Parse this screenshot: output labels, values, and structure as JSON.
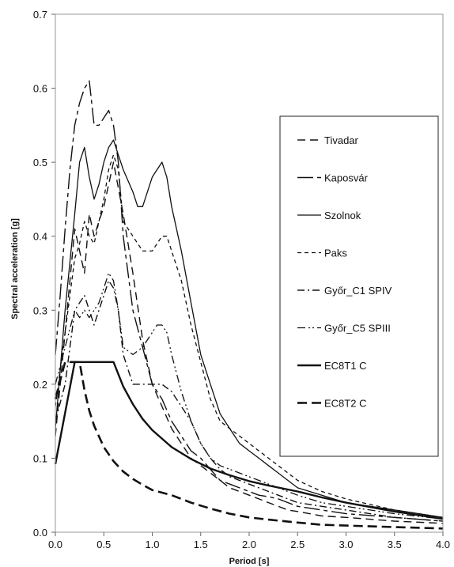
{
  "chart_data": {
    "type": "line",
    "title": "",
    "xlabel": "Period [s]",
    "ylabel": "Spectral acceleration [g]",
    "xlim": [
      0,
      4
    ],
    "ylim": [
      0,
      0.7
    ],
    "x_ticks": [
      "0.0",
      "0.5",
      "1.0",
      "1.5",
      "2.0",
      "2.5",
      "3.0",
      "3.5",
      "4.0"
    ],
    "y_ticks": [
      "0.0",
      "0.1",
      "0.2",
      "0.3",
      "0.4",
      "0.5",
      "0.6",
      "0.7"
    ],
    "grid": false,
    "legend_position": "right",
    "series": [
      {
        "name": "Tivadar",
        "color": "#111111",
        "x": [
          0,
          0.1,
          0.2,
          0.3,
          0.35,
          0.4,
          0.5,
          0.6,
          0.7,
          0.8,
          0.9,
          1.0,
          1.1,
          1.2,
          1.3,
          1.4,
          1.5,
          1.6,
          1.7,
          1.8,
          1.9,
          2.0,
          2.1,
          2.2,
          2.3,
          2.4,
          2.5,
          2.75,
          3.0,
          3.5,
          4.0
        ],
        "y": [
          0.13,
          0.27,
          0.41,
          0.35,
          0.43,
          0.4,
          0.44,
          0.5,
          0.43,
          0.35,
          0.26,
          0.2,
          0.17,
          0.14,
          0.12,
          0.1,
          0.09,
          0.08,
          0.07,
          0.06,
          0.055,
          0.05,
          0.045,
          0.04,
          0.035,
          0.03,
          0.028,
          0.022,
          0.02,
          0.015,
          0.012
        ]
      },
      {
        "name": "Kaposvár",
        "color": "#111111",
        "x": [
          0,
          0.05,
          0.1,
          0.15,
          0.2,
          0.25,
          0.3,
          0.35,
          0.4,
          0.45,
          0.5,
          0.55,
          0.6,
          0.65,
          0.7,
          0.8,
          0.9,
          1.0,
          1.1,
          1.2,
          1.3,
          1.4,
          1.5,
          1.6,
          1.7,
          1.8,
          1.9,
          2.0,
          2.1,
          2.2,
          2.3,
          2.4,
          2.5,
          2.75,
          3.0,
          3.5,
          4.0
        ],
        "y": [
          0.24,
          0.32,
          0.41,
          0.49,
          0.55,
          0.58,
          0.6,
          0.61,
          0.55,
          0.55,
          0.56,
          0.57,
          0.55,
          0.5,
          0.4,
          0.3,
          0.25,
          0.2,
          0.18,
          0.15,
          0.13,
          0.11,
          0.1,
          0.085,
          0.07,
          0.065,
          0.06,
          0.055,
          0.05,
          0.048,
          0.045,
          0.04,
          0.035,
          0.03,
          0.025,
          0.02,
          0.015
        ]
      },
      {
        "name": "Szolnok",
        "color": "#111111",
        "x": [
          0,
          0.1,
          0.2,
          0.25,
          0.3,
          0.35,
          0.4,
          0.45,
          0.5,
          0.55,
          0.6,
          0.65,
          0.7,
          0.8,
          0.85,
          0.9,
          1.0,
          1.05,
          1.1,
          1.15,
          1.2,
          1.3,
          1.4,
          1.5,
          1.6,
          1.7,
          1.8,
          1.9,
          2.0,
          2.1,
          2.2,
          2.3,
          2.4,
          2.5,
          2.75,
          3.0,
          3.5,
          4.0
        ],
        "y": [
          0.14,
          0.3,
          0.43,
          0.5,
          0.52,
          0.48,
          0.45,
          0.47,
          0.5,
          0.52,
          0.53,
          0.51,
          0.49,
          0.46,
          0.44,
          0.44,
          0.48,
          0.49,
          0.5,
          0.48,
          0.44,
          0.38,
          0.31,
          0.24,
          0.2,
          0.16,
          0.14,
          0.12,
          0.11,
          0.1,
          0.09,
          0.08,
          0.07,
          0.06,
          0.05,
          0.04,
          0.03,
          0.02
        ]
      },
      {
        "name": "Paks",
        "color": "#111111",
        "x": [
          0,
          0.1,
          0.2,
          0.25,
          0.3,
          0.35,
          0.4,
          0.45,
          0.5,
          0.55,
          0.6,
          0.65,
          0.7,
          0.8,
          0.9,
          1.0,
          1.1,
          1.15,
          1.2,
          1.3,
          1.4,
          1.5,
          1.6,
          1.7,
          1.8,
          1.9,
          2.0,
          2.1,
          2.2,
          2.3,
          2.4,
          2.5,
          2.75,
          3.0,
          3.5,
          4.0
        ],
        "y": [
          0.17,
          0.27,
          0.37,
          0.39,
          0.42,
          0.4,
          0.39,
          0.42,
          0.45,
          0.49,
          0.51,
          0.49,
          0.42,
          0.4,
          0.38,
          0.38,
          0.4,
          0.4,
          0.38,
          0.34,
          0.28,
          0.23,
          0.18,
          0.15,
          0.14,
          0.13,
          0.12,
          0.11,
          0.1,
          0.09,
          0.08,
          0.07,
          0.055,
          0.045,
          0.03,
          0.02
        ]
      },
      {
        "name": "Győr_C1 SPIV",
        "color": "#111111",
        "x": [
          0,
          0.1,
          0.2,
          0.25,
          0.3,
          0.35,
          0.4,
          0.45,
          0.5,
          0.55,
          0.6,
          0.65,
          0.7,
          0.8,
          0.9,
          1.0,
          1.1,
          1.2,
          1.3,
          1.4,
          1.5,
          1.6,
          1.7,
          1.8,
          1.9,
          2.0,
          2.1,
          2.2,
          2.3,
          2.4,
          2.5,
          2.75,
          3.0,
          3.5,
          4.0
        ],
        "y": [
          0.15,
          0.2,
          0.3,
          0.31,
          0.32,
          0.3,
          0.28,
          0.3,
          0.32,
          0.34,
          0.33,
          0.3,
          0.24,
          0.2,
          0.2,
          0.2,
          0.2,
          0.19,
          0.17,
          0.15,
          0.12,
          0.1,
          0.085,
          0.075,
          0.07,
          0.065,
          0.06,
          0.055,
          0.05,
          0.045,
          0.04,
          0.035,
          0.03,
          0.02,
          0.015
        ]
      },
      {
        "name": "Győr_C5 SPIII",
        "color": "#111111",
        "x": [
          0,
          0.1,
          0.2,
          0.25,
          0.3,
          0.35,
          0.4,
          0.45,
          0.5,
          0.55,
          0.6,
          0.65,
          0.7,
          0.8,
          0.9,
          1.0,
          1.05,
          1.1,
          1.15,
          1.2,
          1.3,
          1.4,
          1.5,
          1.6,
          1.7,
          1.8,
          1.9,
          2.0,
          2.1,
          2.2,
          2.3,
          2.4,
          2.5,
          2.75,
          3.0,
          3.5,
          4.0
        ],
        "y": [
          0.2,
          0.25,
          0.3,
          0.29,
          0.3,
          0.29,
          0.3,
          0.31,
          0.33,
          0.35,
          0.34,
          0.3,
          0.25,
          0.24,
          0.25,
          0.27,
          0.28,
          0.28,
          0.27,
          0.24,
          0.19,
          0.15,
          0.12,
          0.1,
          0.09,
          0.085,
          0.08,
          0.075,
          0.07,
          0.065,
          0.06,
          0.055,
          0.05,
          0.04,
          0.035,
          0.025,
          0.018
        ]
      },
      {
        "name": "EC8T1 C",
        "color": "#111111",
        "x": [
          0,
          0.2,
          0.6,
          0.7,
          0.8,
          0.9,
          1.0,
          1.2,
          1.4,
          1.6,
          1.8,
          2.0,
          2.2,
          2.5,
          2.75,
          3.0,
          3.5,
          4.0
        ],
        "y": [
          0.092,
          0.23,
          0.23,
          0.197,
          0.173,
          0.153,
          0.138,
          0.115,
          0.099,
          0.086,
          0.077,
          0.069,
          0.063,
          0.055,
          0.047,
          0.04,
          0.028,
          0.018
        ]
      },
      {
        "name": "EC8T2 C",
        "color": "#111111",
        "x": [
          0,
          0.1,
          0.25,
          0.3,
          0.35,
          0.4,
          0.5,
          0.6,
          0.7,
          0.8,
          0.9,
          1.0,
          1.2,
          1.4,
          1.6,
          1.8,
          2.0,
          2.2,
          2.5,
          2.75,
          3.0,
          3.5,
          4.0
        ],
        "y": [
          0.18,
          0.23,
          0.23,
          0.192,
          0.164,
          0.144,
          0.115,
          0.096,
          0.082,
          0.072,
          0.064,
          0.057,
          0.05,
          0.04,
          0.032,
          0.025,
          0.02,
          0.017,
          0.013,
          0.01,
          0.009,
          0.007,
          0.005
        ]
      }
    ]
  }
}
